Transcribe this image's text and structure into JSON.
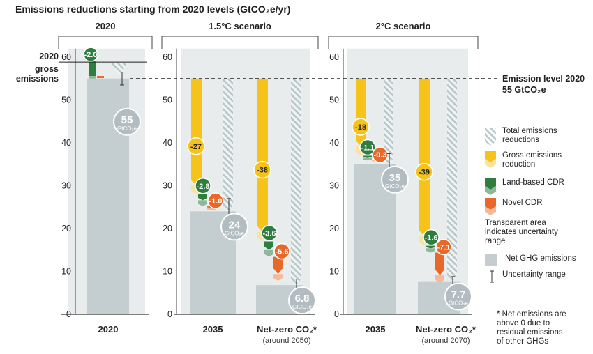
{
  "chart_data": {
    "type": "bar",
    "title": "Emissions reductions starting from 2020 levels (GtCO₂e/yr)",
    "ylim": [
      0,
      60
    ],
    "yticks": [
      0,
      10,
      20,
      30,
      40,
      50,
      60
    ],
    "gross_2020": 59,
    "gross_label": [
      "2020",
      "gross",
      "emissions"
    ],
    "reference": {
      "value": 55,
      "label_line1": "Emission level 2020",
      "label_line2": "55 GtCO₂e"
    },
    "panels": [
      {
        "title": "2020",
        "columns": [
          {
            "label": "2020",
            "sublabel": "",
            "net": 55,
            "net_label": "55",
            "ci": [
              53.5,
              56.5
            ],
            "gross_reduction": 0,
            "land_cdr": -2.0,
            "novel_cdr": 0,
            "total_reduction": 4,
            "gross_band": 0,
            "land_band": 0.6,
            "novel_band": 0
          }
        ]
      },
      {
        "title": "1.5°C scenario",
        "columns": [
          {
            "label": "2035",
            "sublabel": "",
            "net": 24,
            "net_label": "24",
            "ci": [
              21.5,
              27
            ],
            "gross_reduction": -27,
            "land_cdr": -2.8,
            "novel_cdr": -1.0,
            "total_reduction": 31,
            "gross_band": 2,
            "land_band": 1.4,
            "novel_band": 0.6
          },
          {
            "label": "Net-zero CO₂*",
            "sublabel": "(around 2050)",
            "net": 6.8,
            "net_label": "6.8",
            "ci": [
              5.8,
              8.2
            ],
            "gross_reduction": -38,
            "land_cdr": -3.6,
            "novel_cdr": -5.6,
            "total_reduction": 48.2,
            "gross_band": 2.2,
            "land_band": 1.6,
            "novel_band": 1.6
          }
        ]
      },
      {
        "title": "2°C scenario",
        "columns": [
          {
            "label": "2035",
            "sublabel": "",
            "net": 35,
            "net_label": "35",
            "ci": [
              32.5,
              37.5
            ],
            "gross_reduction": -18,
            "land_cdr": -1.1,
            "novel_cdr": -0.3,
            "total_reduction": 20,
            "gross_band": 2.2,
            "land_band": 0.6,
            "novel_band": 0.4
          },
          {
            "label": "Net-zero CO₂*",
            "sublabel": "(around 2070)",
            "net": 7.7,
            "net_label": "7.7",
            "ci": [
              6.5,
              8.8
            ],
            "gross_reduction": -39,
            "land_cdr": -1.6,
            "novel_cdr": -7.1,
            "total_reduction": 47.3,
            "gross_band": 2.2,
            "land_band": 1.0,
            "novel_band": 1.8
          }
        ]
      }
    ],
    "unit_label": "GtCO₂e",
    "legend": [
      {
        "key": "total",
        "label_lines": [
          "Total emissions",
          "reductions"
        ]
      },
      {
        "key": "gross",
        "label_lines": [
          "Gross emissions",
          "reduction"
        ]
      },
      {
        "key": "land",
        "label_lines": [
          "Land-based CDR"
        ]
      },
      {
        "key": "novel",
        "label_lines": [
          "Novel CDR"
        ]
      },
      {
        "key": "note",
        "label_lines": [
          "Transparent area",
          "indicates uncertainty",
          "range"
        ]
      },
      {
        "key": "net",
        "label_lines": [
          "Net GHG emissions"
        ]
      },
      {
        "key": "ci",
        "label_lines": [
          "Uncertainty range"
        ]
      }
    ],
    "footnote": [
      "* Net emissions are",
      "above 0 due to",
      "residual emissions",
      "of other GHGs"
    ],
    "colors": {
      "panel_bg": "#e8ecec",
      "net": "#c4cdd0",
      "gross": "#f6c31b",
      "gross_light": "#f9e3a2",
      "land": "#2f7d3f",
      "land_light": "#8fb89a",
      "novel": "#e8682a",
      "novel_light": "#f2b99b",
      "total_hatch": "#b7c6c6",
      "bubble_net": "#b3bdc1"
    }
  }
}
